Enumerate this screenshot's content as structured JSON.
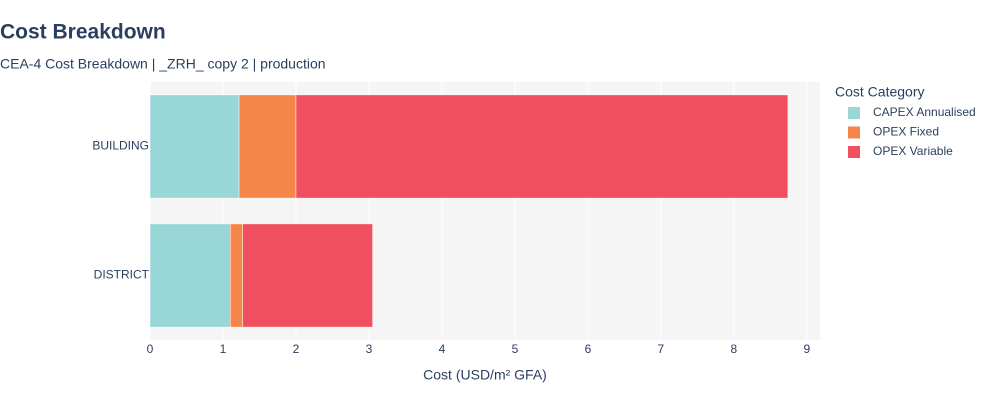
{
  "chart_data": {
    "type": "stacked-horizontal-bar",
    "title": "Cost Breakdown",
    "subtitle": "CEA-4 Cost Breakdown | _ZRH_ copy 2 | production",
    "x_label": "Cost (USD/m² GFA)",
    "legend_title": "Cost Category",
    "legend_position": "right",
    "categories": [
      "BUILDING",
      "DISTRICT"
    ],
    "series": [
      {
        "name": "CAPEX Annualised",
        "color": "#98d6d8",
        "values": [
          1.22,
          1.1
        ]
      },
      {
        "name": "OPEX Fixed",
        "color": "#f4864a",
        "values": [
          0.78,
          0.17
        ]
      },
      {
        "name": "OPEX Variable",
        "color": "#ef4f5e",
        "values": [
          6.74,
          1.78
        ]
      }
    ],
    "xlim": [
      0,
      9.18
    ],
    "xticks": [
      0,
      1,
      2,
      3,
      4,
      5,
      6,
      7,
      8,
      9
    ],
    "grid": true
  }
}
